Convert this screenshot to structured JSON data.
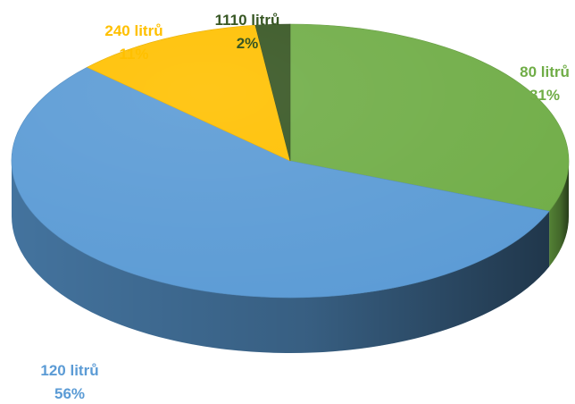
{
  "chart_data": {
    "type": "pie",
    "title": "",
    "style": "3d-tilted",
    "legend": "none",
    "slices": [
      {
        "label": "80 litrů",
        "percent_label": "31%",
        "value": 31,
        "color": "#70AD47"
      },
      {
        "label": "120 litrů",
        "percent_label": "56%",
        "value": 56,
        "color": "#5B9BD5"
      },
      {
        "label": "240 litrů",
        "percent_label": "11%",
        "value": 11,
        "color": "#FFC000"
      },
      {
        "label": "1110 litrů",
        "percent_label": "2%",
        "value": 2,
        "color": "#375623"
      }
    ]
  }
}
